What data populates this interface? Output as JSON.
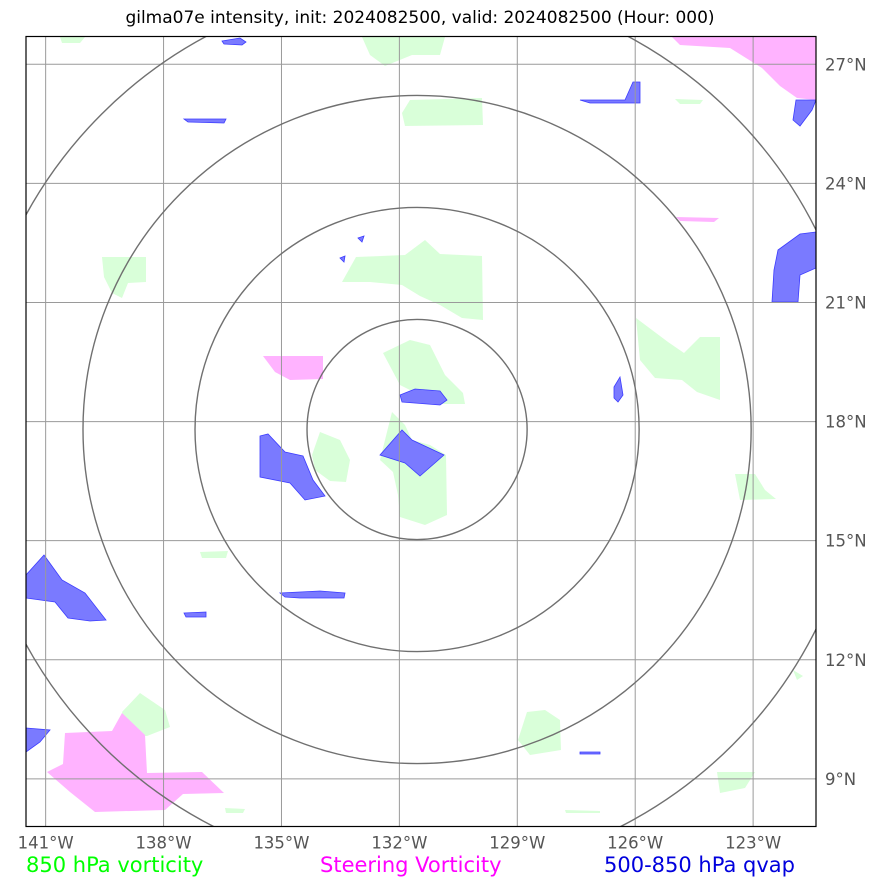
{
  "title": "gilma07e intensity, init: 2024082500, valid: 2024082500 (Hour: 000)",
  "lon_ticks": [
    {
      "value": -141,
      "label": "141°W"
    },
    {
      "value": -138,
      "label": "138°W"
    },
    {
      "value": -135,
      "label": "135°W"
    },
    {
      "value": -132,
      "label": "132°W"
    },
    {
      "value": -129,
      "label": "129°W"
    },
    {
      "value": -126,
      "label": "126°W"
    },
    {
      "value": -123,
      "label": "123°W"
    }
  ],
  "lat_ticks": [
    {
      "value": 27,
      "label": "27°N"
    },
    {
      "value": 24,
      "label": "24°N"
    },
    {
      "value": 21,
      "label": "21°N"
    },
    {
      "value": 18,
      "label": "18°N"
    },
    {
      "value": 15,
      "label": "15°N"
    },
    {
      "value": 12,
      "label": "12°N"
    },
    {
      "value": 9,
      "label": "9°N"
    }
  ],
  "extent": {
    "lon_min": -141.5,
    "lon_max": -121.4,
    "lat_min": 7.8,
    "lat_max": 27.7
  },
  "storm_center": {
    "lon": -131.55,
    "lat": 17.8
  },
  "range_rings_deg": [
    2.8,
    5.65,
    8.5,
    11.35
  ],
  "legend": {
    "vorticity": {
      "label": "850 hPa vorticity",
      "color": "#00ff00"
    },
    "steering": {
      "label": "Steering Vorticity",
      "color": "#ff00ff"
    },
    "qvap": {
      "label": "500-850 hPa qvap",
      "color": "#0000dd"
    }
  },
  "colors": {
    "vorticity_fill": "#d9ffd9",
    "steering_fill": "#ffb3ff",
    "qvap_fill": "#7a7aff",
    "grid": "#9a9a9a",
    "rings": "#707070"
  }
}
